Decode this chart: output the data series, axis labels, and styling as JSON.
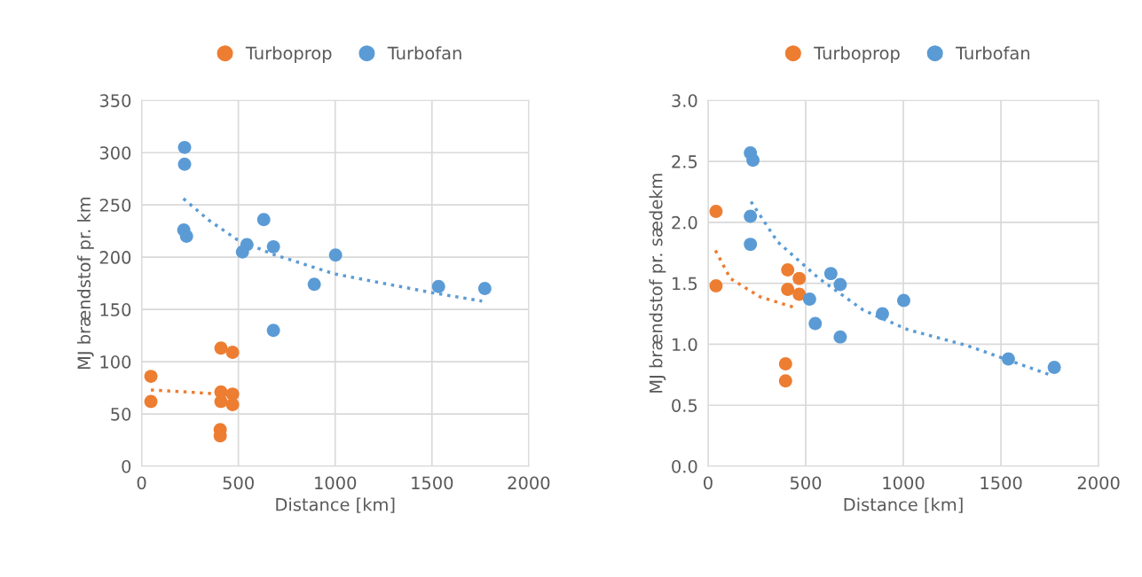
{
  "chart_data": [
    {
      "type": "scatter",
      "xlabel": "Distance [km]",
      "ylabel": "MJ brændstof pr. km",
      "xlim": [
        0,
        2000
      ],
      "xticks": [
        0,
        500,
        1000,
        1500,
        2000
      ],
      "ylim": [
        0,
        350
      ],
      "yticks": [
        0,
        50,
        100,
        150,
        200,
        250,
        300,
        350
      ],
      "grid": true,
      "legend": "top",
      "marker": "circle",
      "series": [
        {
          "name": "Turboprop",
          "color": "#ed7d31",
          "x": [
            48,
            48,
            410,
            470,
            410,
            470,
            410,
            470,
            406,
            406
          ],
          "values": [
            86,
            62,
            113,
            109,
            71,
            69,
            62,
            59,
            35,
            29
          ]
        },
        {
          "name": "Turbofan",
          "color": "#5b9bd5",
          "x": [
            222,
            222,
            218,
            232,
            521,
            544,
            631,
            681,
            892,
            1002,
            681,
            1534,
            1773
          ],
          "values": [
            305,
            289,
            226,
            220,
            205,
            212,
            236,
            210,
            174,
            202,
            130,
            172,
            170
          ]
        },
        {
          "type": "line",
          "line_style": "dotted",
          "marker": "none",
          "color": "#ed7d31",
          "x": [
            48,
            415
          ],
          "values": [
            73,
            69
          ]
        },
        {
          "type": "line",
          "line_style": "dotted",
          "marker": "none",
          "color": "#5b9bd5",
          "x": [
            216,
            350,
            492,
            675,
            996,
            1501,
            1759
          ],
          "values": [
            256,
            235,
            217,
            203,
            184,
            166,
            158
          ]
        }
      ]
    },
    {
      "type": "scatter",
      "xlabel": "Distance [km]",
      "ylabel": "MJ brændstof pr. sædekm",
      "xlim": [
        0,
        2000
      ],
      "xticks": [
        0,
        500,
        1000,
        1500,
        2000
      ],
      "ylim": [
        0,
        3
      ],
      "yticks": [
        {
          "value": 0,
          "label": "0.0"
        },
        {
          "value": 0.5,
          "label": "0.5"
        },
        {
          "value": 1,
          "label": "1.0"
        },
        {
          "value": 1.5,
          "label": "1.5"
        },
        {
          "value": 2,
          "label": "2.0"
        },
        {
          "value": 2.5,
          "label": "2.5"
        },
        {
          "value": 3,
          "label": "3.0"
        }
      ],
      "grid": true,
      "legend": "top",
      "marker": "circle",
      "series": [
        {
          "name": "Turboprop",
          "color": "#ed7d31",
          "x": [
            41,
            41,
            408,
            467,
            408,
            467,
            397,
            397
          ],
          "values": [
            2.09,
            1.48,
            1.61,
            1.54,
            1.45,
            1.41,
            0.84,
            0.7
          ]
        },
        {
          "name": "Turbofan",
          "color": "#5b9bd5",
          "x": [
            217,
            230,
            217,
            217,
            629,
            677,
            520,
            549,
            677,
            1002,
            893,
            1538,
            1773
          ],
          "values": [
            2.57,
            2.51,
            2.05,
            1.82,
            1.58,
            1.49,
            1.37,
            1.17,
            1.06,
            1.36,
            1.25,
            0.88,
            0.81
          ]
        },
        {
          "type": "line",
          "line_style": "dotted",
          "marker": "none",
          "color": "#ed7d31",
          "x": [
            38,
            114,
            265,
            447
          ],
          "values": [
            1.77,
            1.54,
            1.39,
            1.3
          ]
        },
        {
          "type": "line",
          "line_style": "dotted",
          "marker": "none",
          "color": "#5b9bd5",
          "x": [
            220,
            356,
            568,
            795,
            1023,
            1326,
            1750
          ],
          "values": [
            2.17,
            1.84,
            1.54,
            1.28,
            1.12,
            0.99,
            0.75
          ]
        }
      ]
    }
  ]
}
